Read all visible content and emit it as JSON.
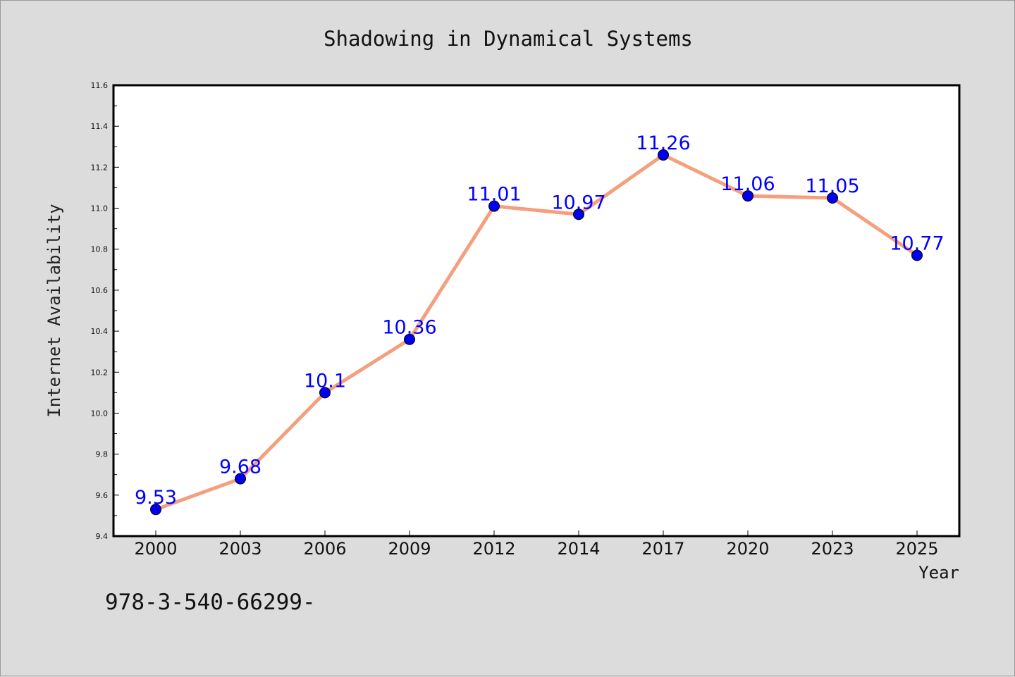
{
  "chart_data": {
    "type": "line",
    "title": "Shadowing in Dynamical Systems",
    "xlabel": "Year",
    "ylabel": "Internet Availability",
    "categories": [
      "2000",
      "2003",
      "2006",
      "2009",
      "2012",
      "2014",
      "2017",
      "2020",
      "2023",
      "2025"
    ],
    "series": [
      {
        "values": [
          9.53,
          9.68,
          10.1,
          10.36,
          11.01,
          10.97,
          11.26,
          11.06,
          11.05,
          10.77
        ],
        "labels": [
          "9.53",
          "9.68",
          "10.1",
          "10.36",
          "11.01",
          "10.97",
          "11.26",
          "11.06",
          "11.05",
          "10.77"
        ],
        "line_color": "#f4a07e",
        "marker_color": "#0000ee",
        "label_color": "#0000ff"
      }
    ],
    "ylim": [
      9.4,
      11.6
    ],
    "yticks": [
      "9.4",
      "9.6",
      "9.8",
      "10.0",
      "10.2",
      "10.4",
      "10.6",
      "10.8",
      "11.0",
      "11.2",
      "11.4",
      "11.6"
    ],
    "grid": false,
    "legend": "none"
  },
  "footer_text": "978-3-540-66299-",
  "colors": {
    "background": "#dcdcdc",
    "plot_background": "#ffffff",
    "axis": "#000000"
  }
}
